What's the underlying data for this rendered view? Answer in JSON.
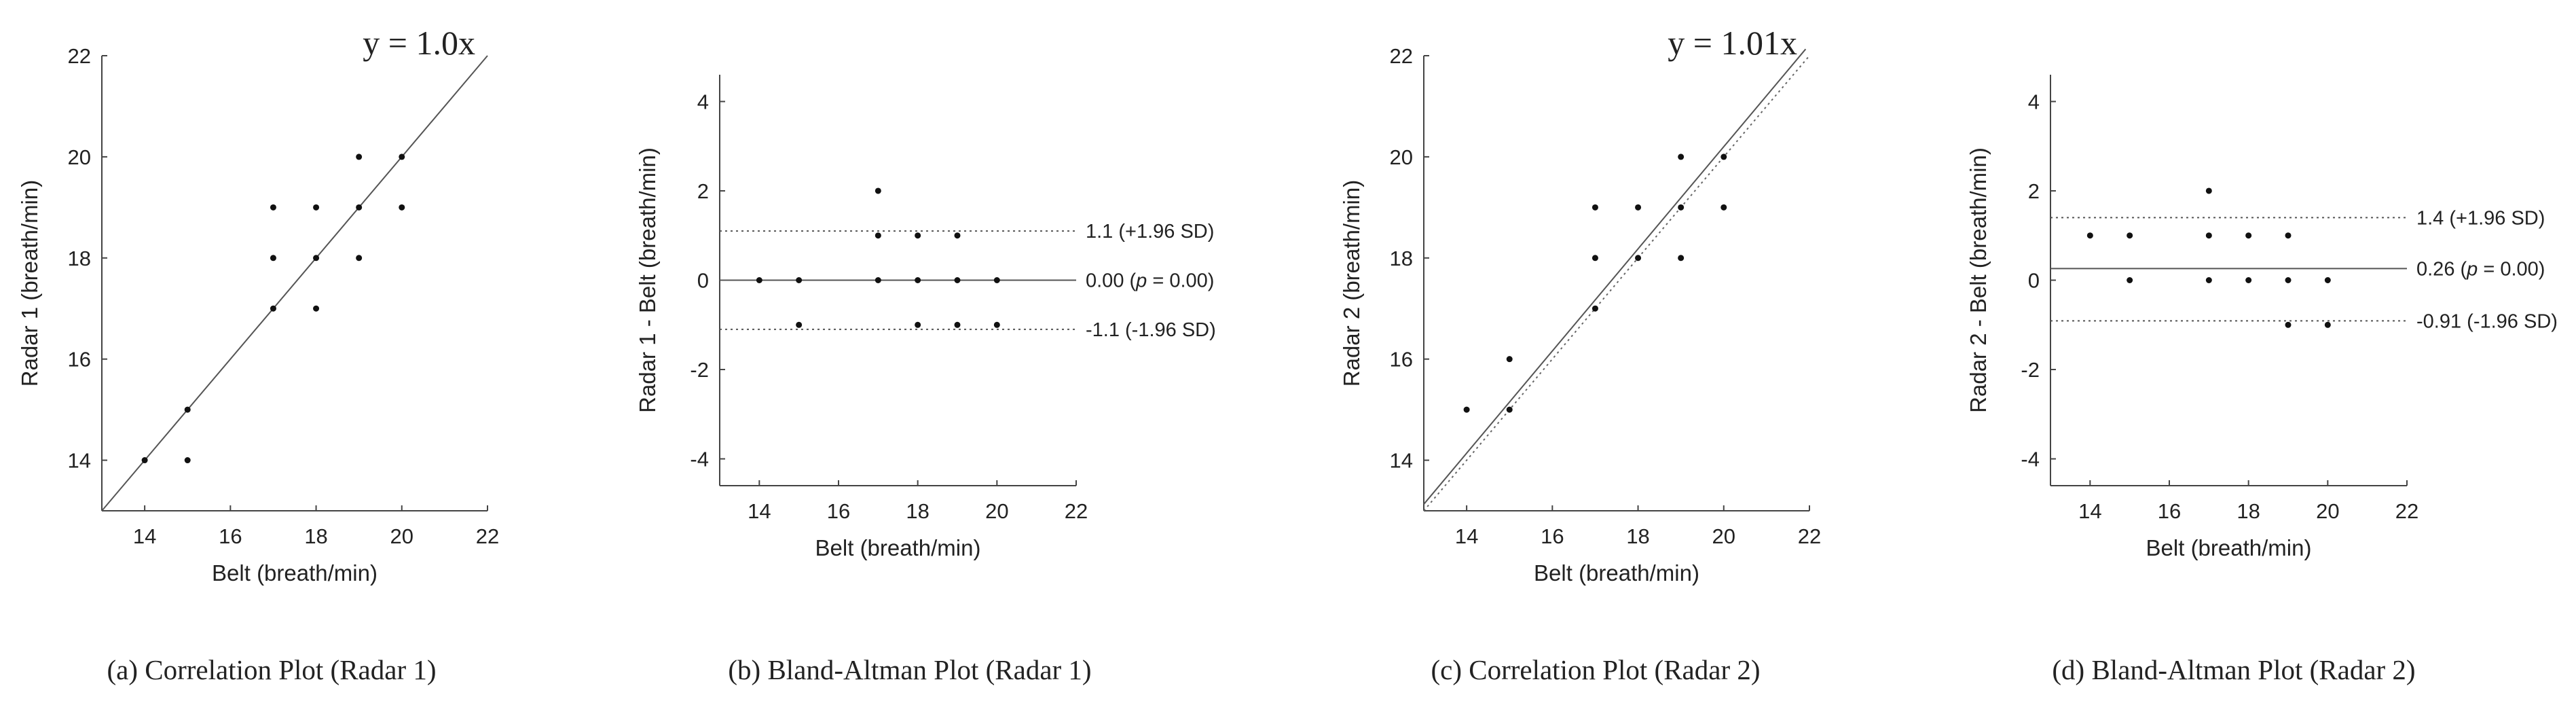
{
  "chart_data": [
    {
      "type": "scatter",
      "panel": "a",
      "caption": "(a) Correlation Plot (Radar 1)",
      "xlabel": "Belt (breath/min)",
      "ylabel": "Radar 1 (breath/min)",
      "xlim": [
        13,
        22
      ],
      "ylim": [
        13,
        22
      ],
      "xticks": [
        "14",
        "16",
        "18",
        "20",
        "22"
      ],
      "yticks": [
        "14",
        "16",
        "18",
        "20",
        "22"
      ],
      "points": [
        [
          14,
          14
        ],
        [
          15,
          15
        ],
        [
          15,
          14
        ],
        [
          17,
          19
        ],
        [
          17,
          18
        ],
        [
          17,
          17
        ],
        [
          18,
          19
        ],
        [
          18,
          18
        ],
        [
          18,
          17
        ],
        [
          19,
          20
        ],
        [
          19,
          19
        ],
        [
          19,
          18
        ],
        [
          20,
          20
        ],
        [
          20,
          19
        ]
      ],
      "fit": {
        "slope": 1.0,
        "label": "y = 1.0x"
      }
    },
    {
      "type": "scatter",
      "panel": "b",
      "caption": "(b) Bland-Altman Plot (Radar 1)",
      "xlabel": "Belt (breath/min)",
      "ylabel": "Radar 1 - Belt (breath/min)",
      "xlim": [
        13,
        22
      ],
      "ylim": [
        -4.6,
        4.6
      ],
      "xticks": [
        "14",
        "16",
        "18",
        "20",
        "22"
      ],
      "yticks": [
        "-4",
        "-2",
        "0",
        "2",
        "4"
      ],
      "points": [
        [
          14,
          0
        ],
        [
          15,
          0
        ],
        [
          15,
          -1
        ],
        [
          17,
          2
        ],
        [
          17,
          1
        ],
        [
          17,
          0
        ],
        [
          18,
          1
        ],
        [
          18,
          0
        ],
        [
          18,
          -1
        ],
        [
          19,
          1
        ],
        [
          19,
          0
        ],
        [
          19,
          -1
        ],
        [
          20,
          0
        ],
        [
          20,
          -1
        ]
      ],
      "mean": {
        "value": 0.0,
        "label": "0.00 (",
        "p_symbol": "p",
        "p_rest": " = 0.00)"
      },
      "upper": {
        "value": 1.1,
        "label": "1.1 (+1.96 SD)"
      },
      "lower": {
        "value": -1.1,
        "label": "-1.1 (-1.96 SD)"
      }
    },
    {
      "type": "scatter",
      "panel": "c",
      "caption": "(c) Correlation Plot (Radar 2)",
      "xlabel": "Belt (breath/min)",
      "ylabel": "Radar 2 (breath/min)",
      "xlim": [
        13,
        22
      ],
      "ylim": [
        13,
        22
      ],
      "xticks": [
        "14",
        "16",
        "18",
        "20",
        "22"
      ],
      "yticks": [
        "14",
        "16",
        "18",
        "20",
        "22"
      ],
      "points": [
        [
          14,
          15
        ],
        [
          15,
          16
        ],
        [
          15,
          15
        ],
        [
          17,
          19
        ],
        [
          17,
          18
        ],
        [
          17,
          17
        ],
        [
          18,
          19
        ],
        [
          18,
          18
        ],
        [
          19,
          20
        ],
        [
          19,
          19
        ],
        [
          19,
          18
        ],
        [
          20,
          20
        ],
        [
          20,
          19
        ]
      ],
      "fit": {
        "slope": 1.01,
        "label": "y = 1.01x"
      },
      "identity_line": true
    },
    {
      "type": "scatter",
      "panel": "d",
      "caption": "(d) Bland-Altman Plot (Radar 2)",
      "xlabel": "Belt (breath/min)",
      "ylabel": "Radar 2 - Belt (breath/min)",
      "xlim": [
        13,
        22
      ],
      "ylim": [
        -4.6,
        4.6
      ],
      "xticks": [
        "14",
        "16",
        "18",
        "20",
        "22"
      ],
      "yticks": [
        "-4",
        "-2",
        "0",
        "2",
        "4"
      ],
      "points": [
        [
          14,
          1
        ],
        [
          15,
          1
        ],
        [
          15,
          0
        ],
        [
          17,
          2
        ],
        [
          17,
          1
        ],
        [
          17,
          0
        ],
        [
          18,
          1
        ],
        [
          18,
          0
        ],
        [
          19,
          1
        ],
        [
          19,
          0
        ],
        [
          19,
          -1
        ],
        [
          20,
          0
        ],
        [
          20,
          -1
        ]
      ],
      "mean": {
        "value": 0.26,
        "label": "0.26 (",
        "p_symbol": "p",
        "p_rest": " = 0.00)"
      },
      "upper": {
        "value": 1.4,
        "label": "1.4 (+1.96 SD)"
      },
      "lower": {
        "value": -0.91,
        "label": "-0.91 (-1.96 SD)"
      }
    }
  ]
}
